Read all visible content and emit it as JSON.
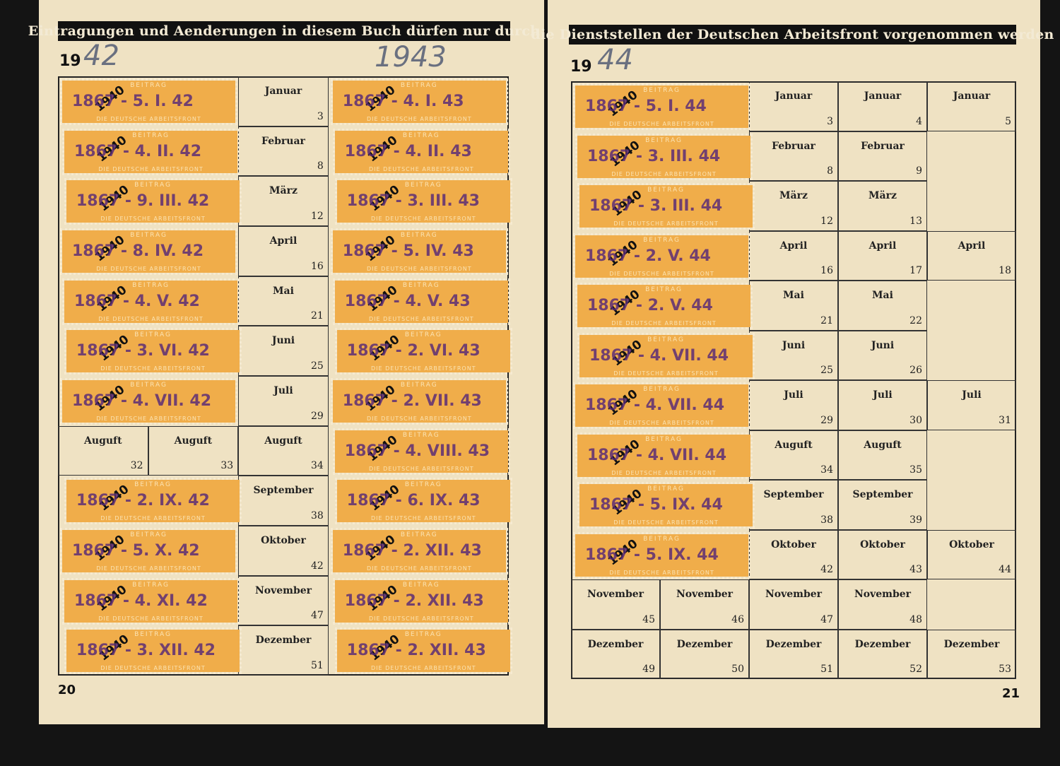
{
  "left_page": {
    "header": "Eintragungen und Aenderungen in diesem Buch dürfen nur durch",
    "year_prefix": "19",
    "year_handwritten": "42",
    "year_extra": "1943",
    "page_number": "20",
    "rows": [
      {
        "month": "Januar",
        "cells": [
          null,
          null,
          3,
          null,
          null
        ],
        "stamps": [
          "1867 - 5. I. 42",
          "1867 - 4. I. 43"
        ]
      },
      {
        "month": "Februar",
        "cells": [
          null,
          null,
          8,
          null,
          null
        ],
        "stamps": [
          "1867 - 4. II. 42",
          "1867 - 4. II. 43"
        ]
      },
      {
        "month": "März",
        "cells": [
          null,
          null,
          12,
          null,
          null
        ],
        "stamps": [
          "1867 - 9. III. 42",
          "1867 - 3. III. 43"
        ]
      },
      {
        "month": "April",
        "cells": [
          null,
          null,
          16,
          null,
          null
        ],
        "stamps": [
          "1867 - 8. IV. 42",
          "1867 - 5. IV. 43"
        ]
      },
      {
        "month": "Mai",
        "cells": [
          null,
          null,
          21,
          null,
          null
        ],
        "stamps": [
          "1867 - 4. V. 42",
          "1867 - 4. V. 43"
        ]
      },
      {
        "month": "Juni",
        "cells": [
          null,
          null,
          25,
          null,
          null
        ],
        "stamps": [
          "1867 - 3. VI. 42",
          "1867 - 2. VI. 43"
        ]
      },
      {
        "month": "Juli",
        "cells": [
          null,
          null,
          29,
          null,
          null
        ],
        "stamps": [
          "1867 - 4. VII. 42",
          "1867 - 2. VII. 43"
        ]
      },
      {
        "month": "Auguft",
        "cells": [
          32,
          33,
          34,
          null,
          null
        ],
        "stamps": [
          null,
          "1867 - 4. VIII. 43"
        ]
      },
      {
        "month": "September",
        "cells": [
          null,
          null,
          38,
          null,
          null
        ],
        "stamps": [
          "1867 - 2. IX. 42",
          "1867 - 6. IX. 43"
        ]
      },
      {
        "month": "Oktober",
        "cells": [
          null,
          null,
          42,
          null,
          null
        ],
        "stamps": [
          "1867 - 5. X. 42",
          "1867 - 2. XII. 43"
        ]
      },
      {
        "month": "November",
        "cells": [
          null,
          null,
          47,
          null,
          null
        ],
        "stamps": [
          "1867 - 4. XI. 42",
          "1867 - 2. XII. 43"
        ]
      },
      {
        "month": "Dezember",
        "cells": [
          null,
          null,
          51,
          null,
          null
        ],
        "stamps": [
          "1867 - 3. XII. 42",
          "1867 - 2. XII. 43"
        ]
      }
    ]
  },
  "right_page": {
    "header": "die Dienststellen der Deutschen Arbeitsfront vorgenommen werden",
    "year_prefix": "19",
    "year_handwritten": "44",
    "page_number": "21",
    "rows": [
      {
        "month": "Januar",
        "cells": [
          null,
          null,
          3,
          4,
          5
        ],
        "stamps": [
          "1867 - 5. I. 44"
        ]
      },
      {
        "month": "Februar",
        "cells": [
          null,
          null,
          8,
          9,
          null
        ],
        "stamps": [
          "1867 - 3. III. 44"
        ]
      },
      {
        "month": "März",
        "cells": [
          null,
          null,
          12,
          13,
          null
        ],
        "stamps": [
          "1867 - 3. III. 44"
        ]
      },
      {
        "month": "April",
        "cells": [
          null,
          null,
          16,
          17,
          18
        ],
        "stamps": [
          "1867 - 2. V. 44"
        ]
      },
      {
        "month": "Mai",
        "cells": [
          null,
          null,
          21,
          22,
          null
        ],
        "stamps": [
          "1867 - 2. V. 44"
        ]
      },
      {
        "month": "Juni",
        "cells": [
          null,
          null,
          25,
          26,
          null
        ],
        "stamps": [
          "1867 - 4. VII. 44"
        ]
      },
      {
        "month": "Juli",
        "cells": [
          null,
          null,
          29,
          30,
          31
        ],
        "stamps": [
          "1867 - 4. VII. 44"
        ]
      },
      {
        "month": "Auguft",
        "cells": [
          null,
          null,
          34,
          35,
          null
        ],
        "stamps": [
          "1867 - 4. VII. 44"
        ]
      },
      {
        "month": "September",
        "cells": [
          null,
          null,
          38,
          39,
          null
        ],
        "stamps": [
          "1867 - 5. IX. 44"
        ]
      },
      {
        "month": "Oktober",
        "cells": [
          null,
          null,
          42,
          43,
          44
        ],
        "stamps": [
          "1867 - 5. IX. 44"
        ]
      },
      {
        "month": "November",
        "cells": [
          45,
          46,
          47,
          48,
          null
        ],
        "stamps": []
      },
      {
        "month": "Dezember",
        "cells": [
          49,
          50,
          51,
          52,
          53
        ],
        "stamps": []
      }
    ]
  },
  "stamp": {
    "label": "BEITRAG",
    "footer": "DIE DEUTSCHE ARBEITSFRONT",
    "overprint": "1940"
  }
}
